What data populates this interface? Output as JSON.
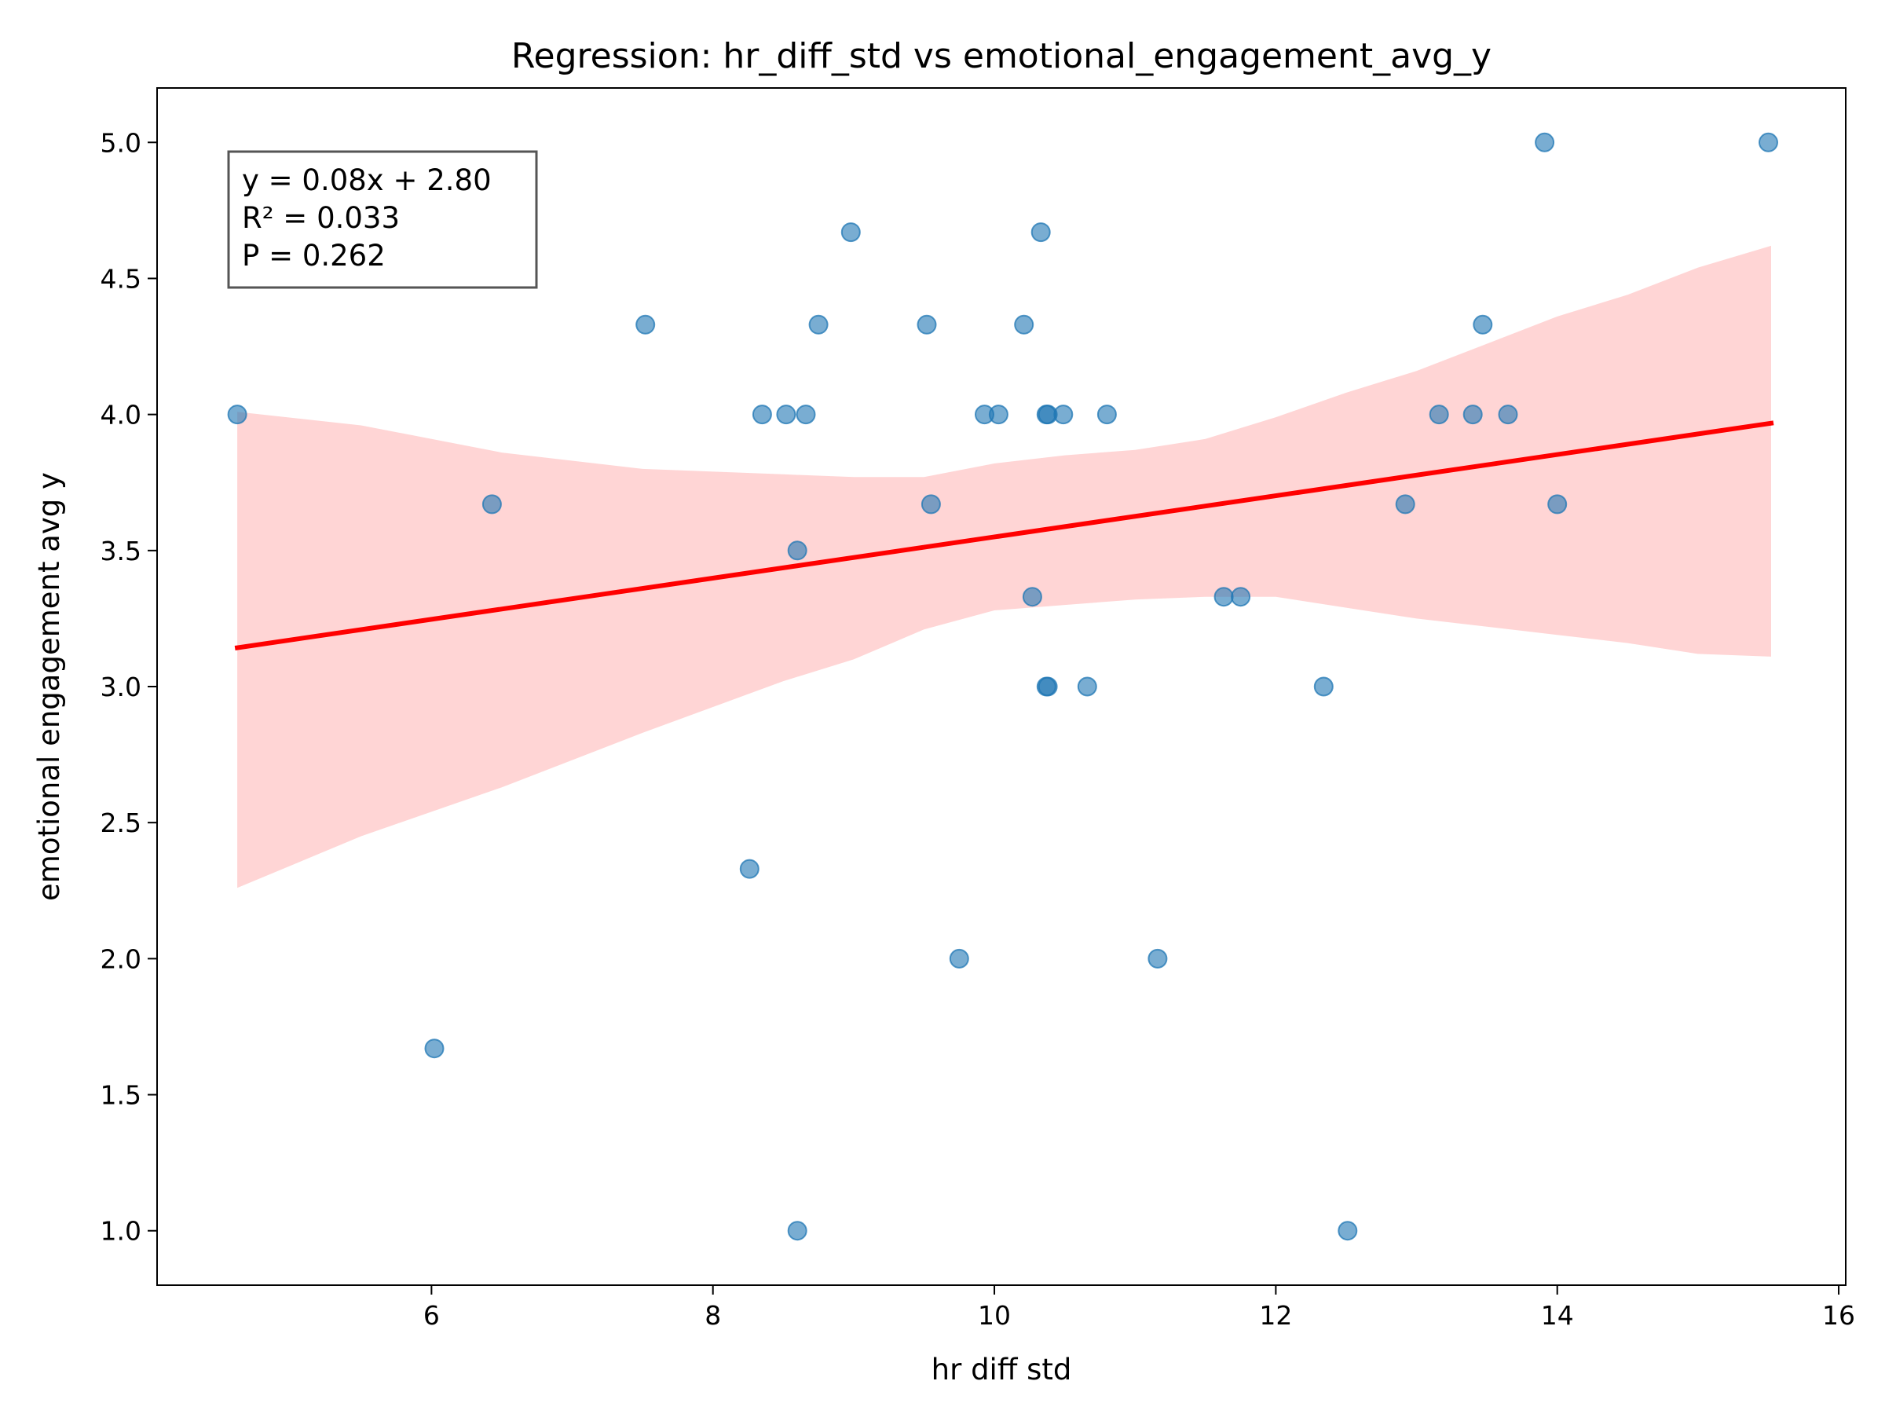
{
  "chart_data": {
    "type": "scatter",
    "title": "Regression: hr_diff_std vs emotional_engagement_avg_y",
    "xlabel": "hr diff std",
    "ylabel": "emotional engagement avg y",
    "xlim": [
      4.05,
      16.05
    ],
    "ylim": [
      0.8,
      5.2
    ],
    "xticks": [
      6,
      8,
      10,
      12,
      14,
      16
    ],
    "yticks": [
      1.0,
      1.5,
      2.0,
      2.5,
      3.0,
      3.5,
      4.0,
      4.5,
      5.0
    ],
    "xtick_labels": [
      "6",
      "8",
      "10",
      "12",
      "14",
      "16"
    ],
    "ytick_labels": [
      "1.0",
      "1.5",
      "2.0",
      "2.5",
      "3.0",
      "3.5",
      "4.0",
      "4.5",
      "5.0"
    ],
    "grid": false,
    "annotation": [
      "y = 0.08x + 2.80",
      "R² = 0.033",
      "P = 0.262"
    ],
    "regression": {
      "slope": 0.0757,
      "intercept": 2.793,
      "x_start": 4.62,
      "x_end": 15.52,
      "color": "#ff0000"
    },
    "confidence_band": {
      "color": "#ffb3b3",
      "x": [
        4.62,
        5.5,
        6.5,
        7.5,
        8.5,
        9.0,
        9.5,
        10.0,
        10.5,
        11.0,
        11.5,
        12.0,
        12.5,
        13.0,
        13.5,
        14.0,
        14.5,
        15.0,
        15.52
      ],
      "upper": [
        4.01,
        3.96,
        3.86,
        3.8,
        3.78,
        3.77,
        3.77,
        3.82,
        3.85,
        3.87,
        3.91,
        3.99,
        4.08,
        4.16,
        4.26,
        4.36,
        4.44,
        4.54,
        4.62
      ],
      "lower": [
        2.26,
        2.45,
        2.63,
        2.83,
        3.02,
        3.1,
        3.21,
        3.28,
        3.3,
        3.32,
        3.33,
        3.33,
        3.29,
        3.25,
        3.22,
        3.19,
        3.16,
        3.12,
        3.11
      ]
    },
    "series": [
      {
        "name": "observations",
        "color": "#1f77b4",
        "x": [
          4.62,
          6.02,
          6.43,
          7.52,
          8.26,
          8.35,
          8.52,
          8.6,
          8.6,
          8.66,
          8.75,
          8.98,
          9.52,
          9.55,
          9.75,
          9.93,
          10.03,
          10.21,
          10.27,
          10.33,
          10.37,
          10.38,
          10.37,
          10.38,
          10.49,
          10.66,
          10.8,
          11.16,
          11.63,
          11.75,
          12.34,
          12.51,
          12.92,
          13.16,
          13.4,
          13.47,
          13.65,
          13.91,
          14.0,
          15.5
        ],
        "y": [
          4.0,
          1.67,
          3.67,
          4.33,
          2.33,
          4.0,
          4.0,
          3.5,
          1.0,
          4.0,
          4.33,
          4.67,
          4.33,
          3.67,
          2.0,
          4.0,
          4.0,
          4.33,
          3.33,
          4.67,
          4.0,
          4.0,
          3.0,
          3.0,
          4.0,
          3.0,
          4.0,
          2.0,
          3.33,
          3.33,
          3.0,
          1.0,
          3.67,
          4.0,
          4.0,
          4.33,
          4.0,
          5.0,
          3.67,
          5.0
        ]
      }
    ]
  }
}
